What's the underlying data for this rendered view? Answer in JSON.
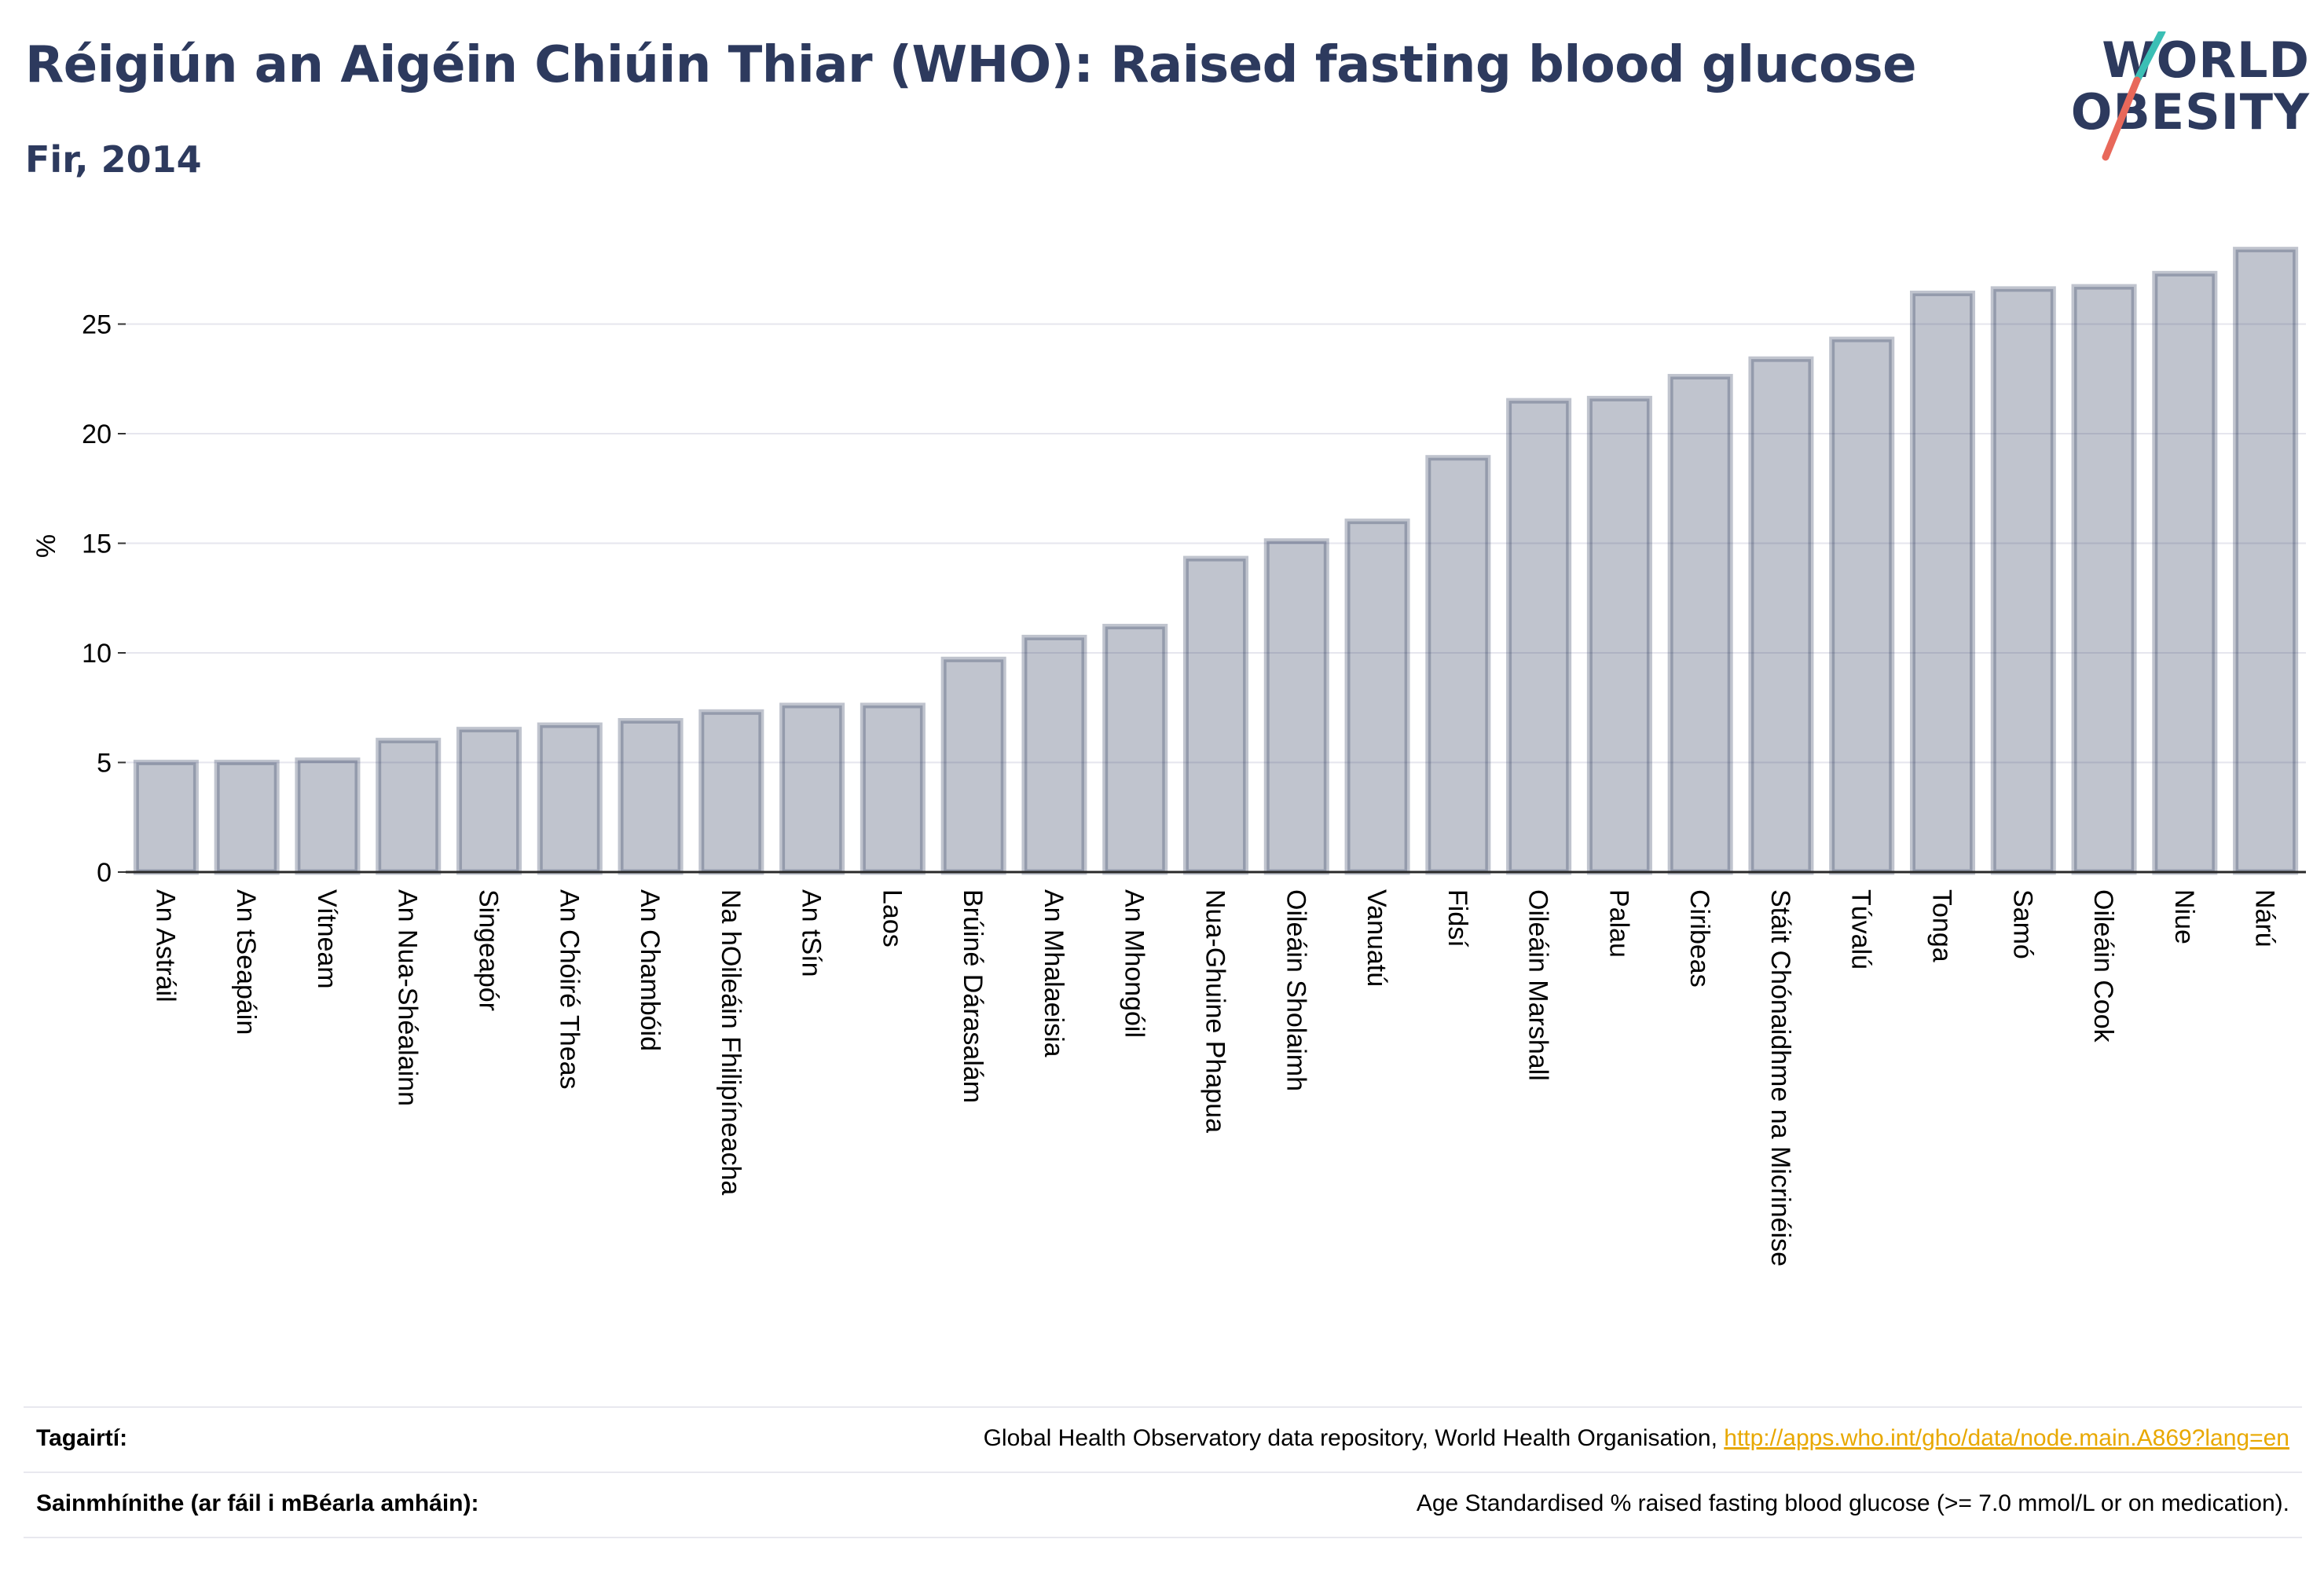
{
  "header": {
    "title": "Réigiún an Aigéin Chiúin Thiar (WHO): Raised fasting blood glucose",
    "subtitle": "Fir, 2014"
  },
  "logo": {
    "line1": "WORLD",
    "line2": "OBESITY",
    "slash_colors": [
      "#3bbfb5",
      "#e8685a"
    ]
  },
  "chart_data": {
    "type": "bar",
    "title": "Réigiún an Aigéin Chiúin Thiar (WHO): Raised fasting blood glucose",
    "subtitle": "Fir, 2014",
    "ylabel": "%",
    "xlabel": "",
    "ylim": [
      0,
      29
    ],
    "yticks": [
      0,
      5,
      10,
      15,
      20,
      25
    ],
    "grid": true,
    "bar_color": "#2d3a5e",
    "categories": [
      "An Astráil",
      "An tSeapáin",
      "Vítneam",
      "An Nua-Shéalainn",
      "Singeapór",
      "An Chóiré Theas",
      "An Chambóid",
      "Na hOileáin Fhilipíneacha",
      "An tSín",
      "Laos",
      "Brúiné Dárasalám",
      "An Mhalaeisia",
      "An Mhongóil",
      "Nua-Ghuine Phapua",
      "Oileáin Sholaimh",
      "Vanuatú",
      "Fidsí",
      "Oileáin Marshall",
      "Palau",
      "Ciribeas",
      "Stáit Chónaidhme na Micrinéise",
      "Túvalú",
      "Tonga",
      "Samó",
      "Oileáin Cook",
      "Niue",
      "Nárú"
    ],
    "values": [
      5.0,
      5.0,
      5.1,
      6.0,
      6.5,
      6.7,
      6.9,
      7.3,
      7.6,
      7.6,
      9.7,
      10.7,
      11.2,
      14.3,
      15.1,
      16.0,
      18.9,
      21.5,
      21.6,
      22.6,
      23.4,
      24.3,
      26.4,
      26.6,
      26.7,
      27.3,
      28.4
    ]
  },
  "footer": {
    "references_label": "Tagairtí:",
    "references_text": "Global Health Observatory data repository, World Health Organisation, ",
    "references_link": "http://apps.who.int/gho/data/node.main.A869?lang=en",
    "definitions_label": "Sainmhínithe (ar fáil i mBéarla amháin):",
    "definitions_text": "Age Standardised % raised fasting blood glucose (>= 7.0 mmol/L or on medication)."
  }
}
